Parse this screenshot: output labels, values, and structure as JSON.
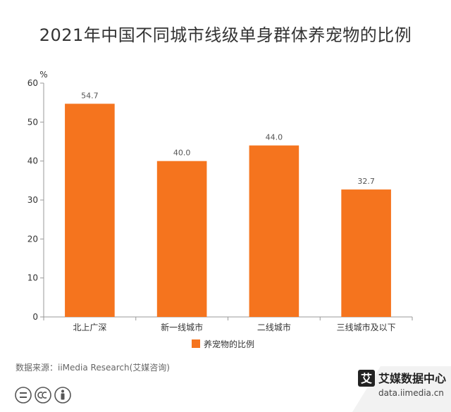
{
  "chart_data": {
    "type": "bar",
    "title": "2021年中国不同城市线级单身群体养宠物的比例",
    "unit": "%",
    "categories": [
      "北上广深",
      "新一线城市",
      "二线城市",
      "三线城市及以下"
    ],
    "series": [
      {
        "name": "养宠物的比例",
        "values": [
          54.7,
          40.0,
          44.0,
          32.7
        ],
        "labels": [
          "54.7",
          "40.0",
          "44.0",
          "32.7"
        ]
      }
    ],
    "ylim": [
      0,
      60
    ],
    "yticks": [
      0,
      10,
      20,
      30,
      40,
      50,
      60
    ],
    "grid": false,
    "legend_position": "bottom-center",
    "colors": {
      "bar": "#F5741E",
      "axis": "#999999"
    }
  },
  "source_text": "数据来源：iiMedia Research(艾媒咨询)",
  "brand": {
    "name": "艾媒数据中心",
    "url": "data.iimedia.cn",
    "logo_char": "艾"
  },
  "license_icons": [
    "equal-icon",
    "cc-icon",
    "person-icon"
  ]
}
